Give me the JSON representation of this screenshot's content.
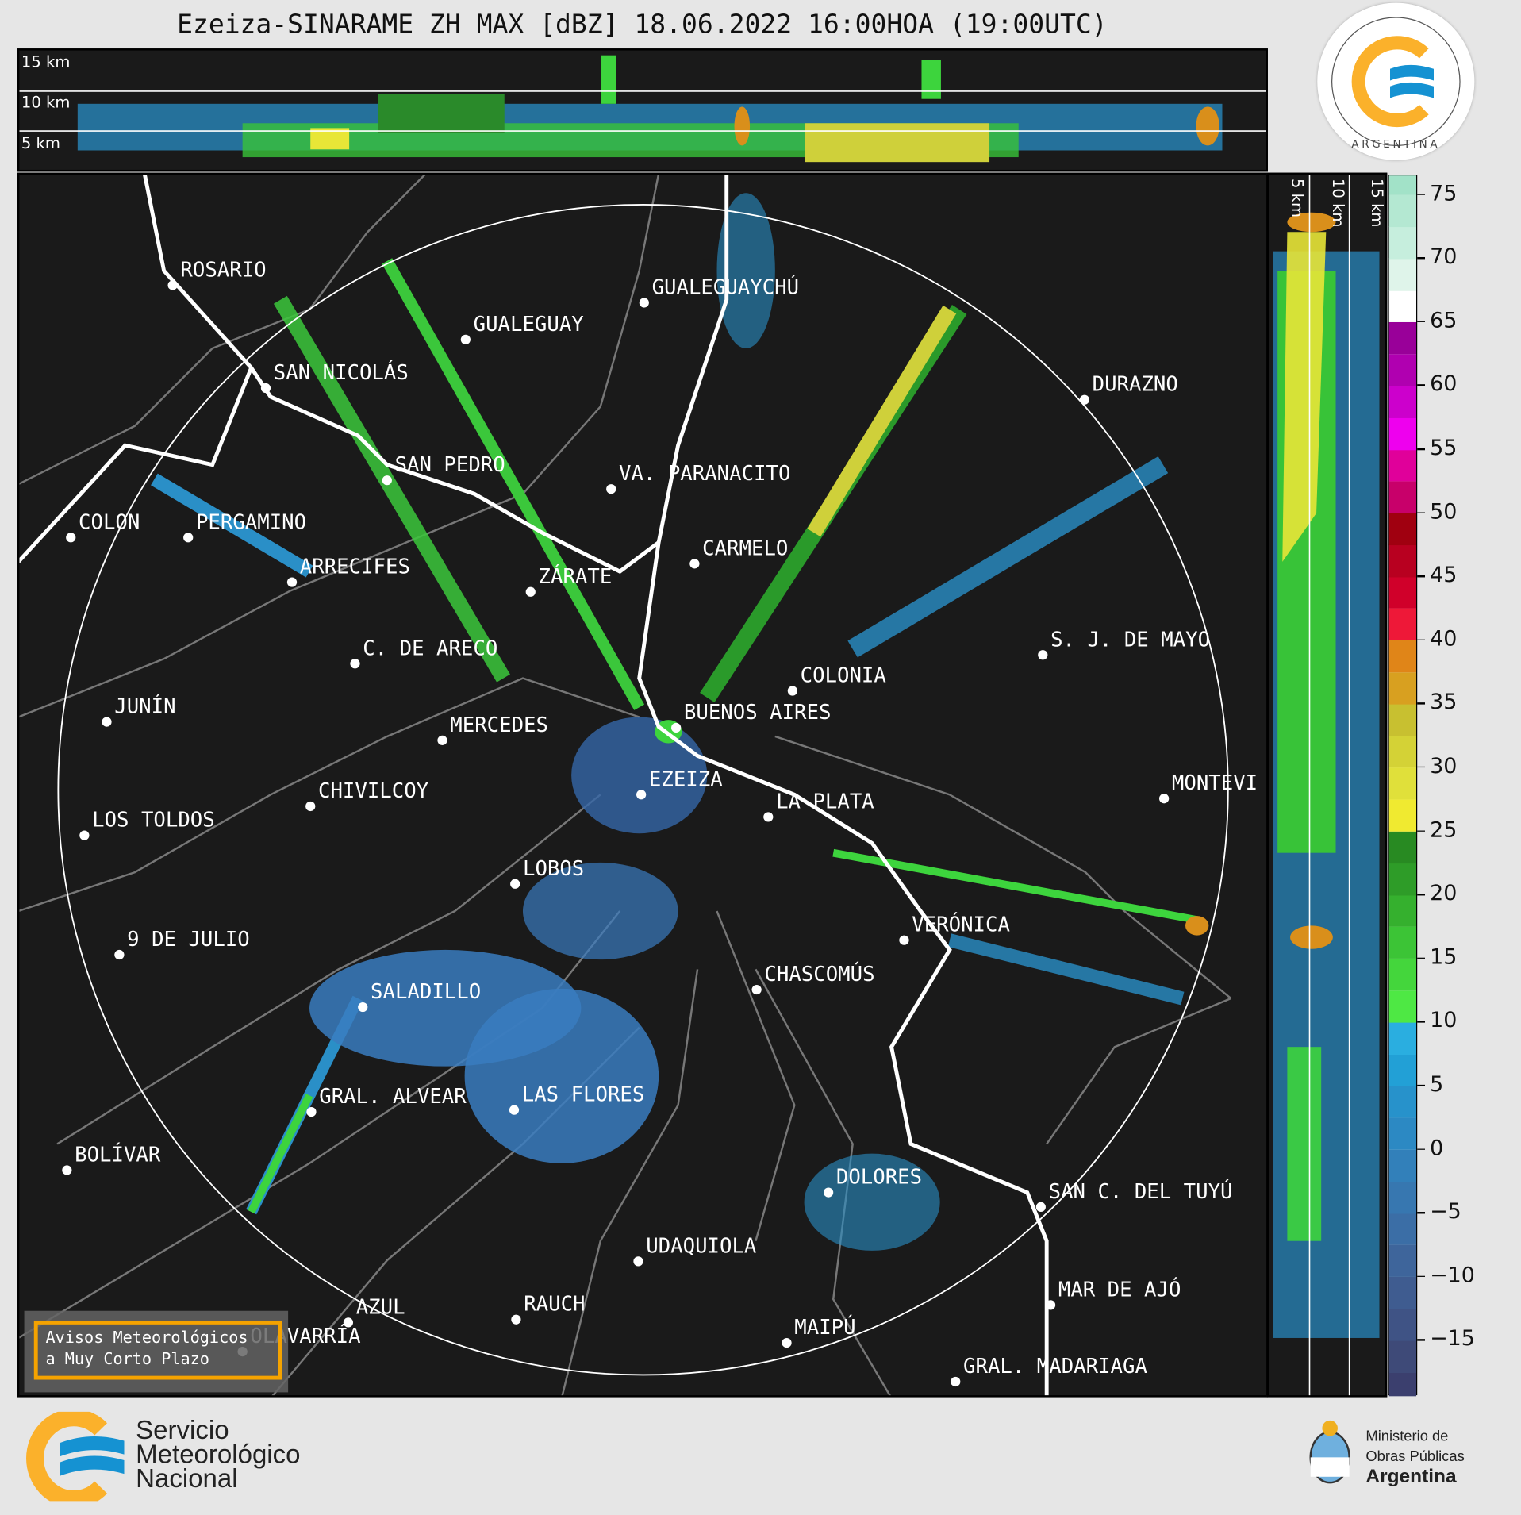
{
  "title": "Ezeiza-SINARAME ZH MAX [dBZ] 18.06.2022 16:00HOA (19:00UTC)",
  "top_panel": {
    "height_labels": [
      "15 km",
      "10 km",
      "5 km"
    ]
  },
  "side_panel": {
    "height_labels": [
      "5 km",
      "10 km",
      "15 km"
    ]
  },
  "colorbar": {
    "unit": "dBZ",
    "ticks": [
      "75",
      "70",
      "65",
      "60",
      "55",
      "50",
      "45",
      "40",
      "35",
      "30",
      "25",
      "20",
      "15",
      "10",
      "5",
      "0",
      "−5",
      "−10",
      "−15"
    ]
  },
  "cities": [
    "ROSARIO",
    "GUALEGUAYCHÚ",
    "GUALEGUAY",
    "SAN NICOLÁS",
    "DURAZNO",
    "SAN PEDRO",
    "VA. PARANACITO",
    "COLON",
    "PERGAMINO",
    "CARMELO",
    "ARRECIFES",
    "ZÁRATE",
    "S. J. DE MAYO",
    "C. DE ARECO",
    "COLONIA",
    "JUNÍN",
    "BUENOS AIRES",
    "MERCEDES",
    "MONTEVI",
    "EZEIZA",
    "CHIVILCOY",
    "LA PLATA",
    "LOS TOLDOS",
    "LOBOS",
    "VERÓNICA",
    "9 DE JULIO",
    "CHASCOMÚS",
    "SALADILLO",
    "GRAL. ALVEAR",
    "LAS FLORES",
    "BOLÍVAR",
    "DOLORES",
    "SAN C. DEL TUYÚ",
    "UDAQUIOLA",
    "MAR DE AJÓ",
    "AZUL",
    "RAUCH",
    "OLAVARRÍA",
    "MAIPÚ",
    "GRAL. MADARIAGA"
  ],
  "warning_box": {
    "line1": "Avisos Meteorológicos",
    "line2": "a Muy Corto Plazo",
    "border_color": "#f5a300"
  },
  "smn_badge": {
    "text_top": "SERVICIO METEOROLÓGICO NACIONAL",
    "text_bottom": "ARGENTINA"
  },
  "footer": {
    "brand": [
      "Servicio",
      "Meteorológico",
      "Nacional"
    ],
    "ministry": [
      "Ministerio de",
      "Obras Públicas",
      "Argentina"
    ]
  },
  "colors": {
    "background": "#e6e6e6",
    "map_bg": "#1a1a1a",
    "brand_orange": "#fbb12b",
    "brand_blue": "#1592d2"
  }
}
